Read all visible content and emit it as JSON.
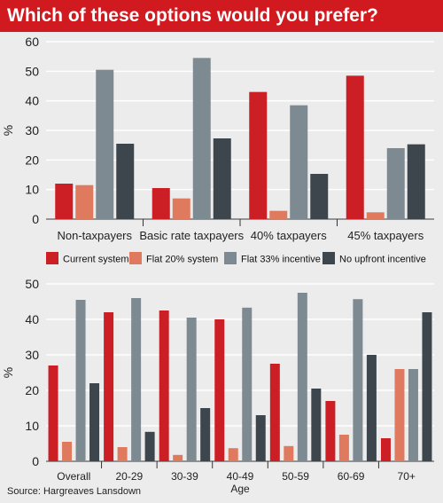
{
  "title": "Which of these options would you prefer?",
  "source": "Source: Hargreaves Lansdown",
  "colors": {
    "title_bg": "#d11a1f",
    "background": "#ececec",
    "grid": "#ffffff",
    "axis": "#333333",
    "series": [
      "#cc1f25",
      "#e07a5f",
      "#7e8a92",
      "#3c464c"
    ]
  },
  "legend": {
    "placement": "between charts",
    "labels": [
      "Current system",
      "Flat 20% system",
      "Flat 33% incentive",
      "No upfront incentive"
    ]
  },
  "chart_data": [
    {
      "type": "bar",
      "ylabel": "%",
      "xlabel": "",
      "ylim": [
        0,
        60
      ],
      "yticks": [
        0,
        10,
        20,
        30,
        40,
        50,
        60
      ],
      "grid": true,
      "categories": [
        "Non-taxpayers",
        "Basic rate taxpayers",
        "40% taxpayers",
        "45% taxpayers"
      ],
      "series": [
        {
          "name": "Current system",
          "values": [
            12,
            10.5,
            43,
            48.5
          ]
        },
        {
          "name": "Flat 20% system",
          "values": [
            11.5,
            7,
            2.8,
            2.3
          ]
        },
        {
          "name": "Flat 33% incentive",
          "values": [
            50.5,
            54.5,
            38.5,
            24
          ]
        },
        {
          "name": "No upfront incentive",
          "values": [
            25.5,
            27.3,
            15.3,
            25.3
          ]
        }
      ]
    },
    {
      "type": "bar",
      "ylabel": "%",
      "xlabel": "Age",
      "ylim": [
        0,
        50
      ],
      "yticks": [
        0,
        10,
        20,
        30,
        40,
        50
      ],
      "grid": true,
      "categories": [
        "Overall",
        "20-29",
        "30-39",
        "40-49",
        "50-59",
        "60-69",
        "70+"
      ],
      "series": [
        {
          "name": "Current system",
          "values": [
            27,
            42,
            42.5,
            40,
            27.5,
            17,
            6.5
          ]
        },
        {
          "name": "Flat 20% system",
          "values": [
            5.5,
            4,
            1.8,
            3.7,
            4.3,
            7.5,
            26
          ]
        },
        {
          "name": "Flat 33% incentive",
          "values": [
            45.5,
            46,
            40.5,
            43.3,
            47.5,
            45.7,
            26
          ]
        },
        {
          "name": "No upfront incentive",
          "values": [
            22,
            8.3,
            15,
            13,
            20.5,
            30,
            42
          ]
        }
      ]
    }
  ]
}
